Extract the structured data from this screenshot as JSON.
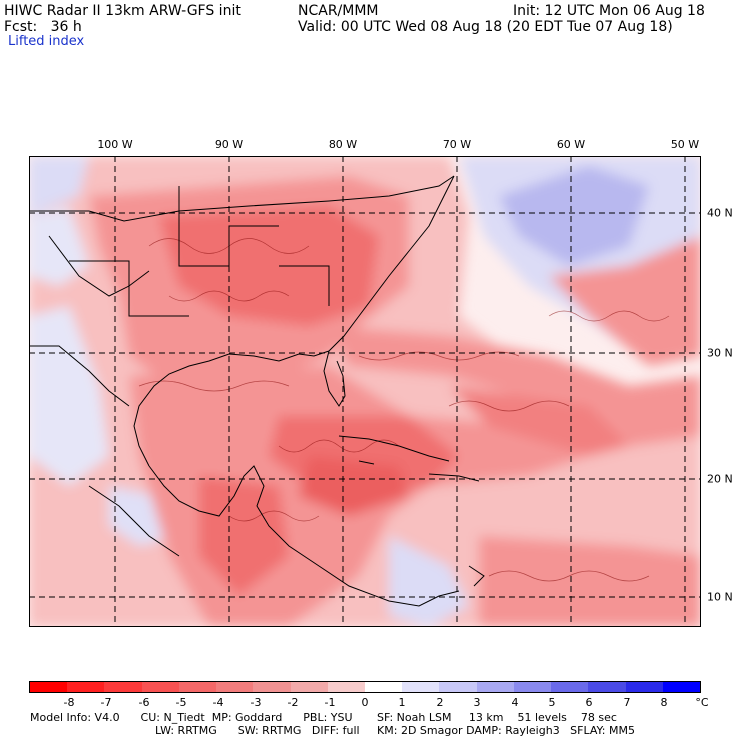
{
  "header": {
    "title": "HIWC Radar II 13km ARW-GFS init",
    "org": "NCAR/MMM",
    "init": "Init: 12 UTC Mon 06 Aug 18",
    "fcst_label": "Fcst:",
    "fcst_value": "36 h",
    "valid": "Valid: 00 UTC Wed 08 Aug 18 (20 EDT Tue 07 Aug 18)",
    "field": "Lifted index"
  },
  "axes": {
    "lon_labels": [
      "100 W",
      "90 W",
      "80 W",
      "70 W",
      "60 W",
      "50 W"
    ],
    "lat_labels": [
      "40 N",
      "30 N",
      "20 N",
      "10 N"
    ]
  },
  "colorbar": {
    "ticks": [
      "-8",
      "-7",
      "-6",
      "-5",
      "-4",
      "-3",
      "-2",
      "-1",
      "0",
      "1",
      "2",
      "3",
      "4",
      "5",
      "6",
      "7",
      "8"
    ],
    "unit": "°C",
    "colors": [
      "#ff0000",
      "#ff2020",
      "#fc3a3a",
      "#f85252",
      "#f46868",
      "#f27d7d",
      "#f19393",
      "#f2aaaa",
      "#f7cccc",
      "#ffffff",
      "#e2e2fb",
      "#c8c8f7",
      "#a9a9f2",
      "#8a8aee",
      "#6a6aea",
      "#4b4be6",
      "#2b2bea",
      "#0000ff"
    ]
  },
  "footer": {
    "line1": "Model Info: V4.0      CU: N_Tiedt  MP: Goddard      PBL: YSU       SF: Noah LSM     13 km    51 levels    78 sec",
    "line2": "LW: RRTMG      SW: RRTMG   DIFF: full     KM: 2D Smagor DAMP: Rayleigh3   SFLAY: MM5"
  },
  "map": {
    "field_colors": {
      "strong_unstable": "#f07070",
      "moderate_unstable": "#f49494",
      "weak_unstable": "#f8c0c0",
      "neutral": "#fdeeee",
      "weak_stable": "#dcdcf6",
      "moderate_stable": "#b8b8ef",
      "gridline": "#000000",
      "coastline": "#000000"
    }
  }
}
